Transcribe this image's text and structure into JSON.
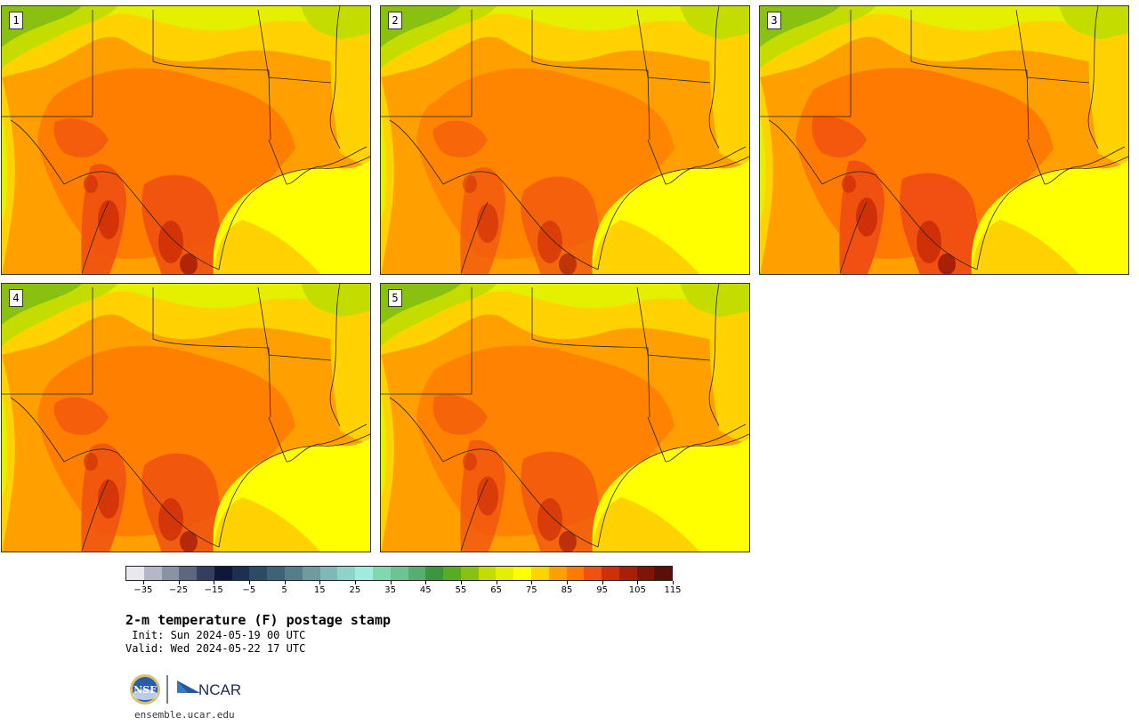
{
  "panels": [
    {
      "number": "1"
    },
    {
      "number": "2"
    },
    {
      "number": "3"
    },
    {
      "number": "4"
    },
    {
      "number": "5"
    }
  ],
  "colorbar": {
    "colors": [
      "#e8e8ee",
      "#b4b8c6",
      "#8c92a6",
      "#5e6680",
      "#343e60",
      "#10183a",
      "#1e3050",
      "#2e4a66",
      "#3e6276",
      "#557e88",
      "#6e9aa0",
      "#80b8b8",
      "#8ed2c8",
      "#a0ecdc",
      "#7ed8b0",
      "#6cc494",
      "#56ae72",
      "#3c9640",
      "#5aaa22",
      "#8ac010",
      "#c4dc00",
      "#e4f000",
      "#ffff00",
      "#ffd200",
      "#ffa000",
      "#ff7a00",
      "#f05010",
      "#d03008",
      "#a82008",
      "#801408",
      "#5a100a"
    ],
    "tick_labels": [
      "−35",
      "−25",
      "−15",
      "−5",
      "5",
      "15",
      "25",
      "35",
      "45",
      "55",
      "65",
      "75",
      "85",
      "95",
      "105",
      "115"
    ]
  },
  "title": "2-m temperature (F) postage stamp",
  "init": " Init: Sun 2024-05-19 00 UTC",
  "valid": "Valid: Wed 2024-05-22 17 UTC",
  "logos": {
    "nsf": "NSF",
    "ncar": "NCAR"
  },
  "url": "ensemble.ucar.edu"
}
